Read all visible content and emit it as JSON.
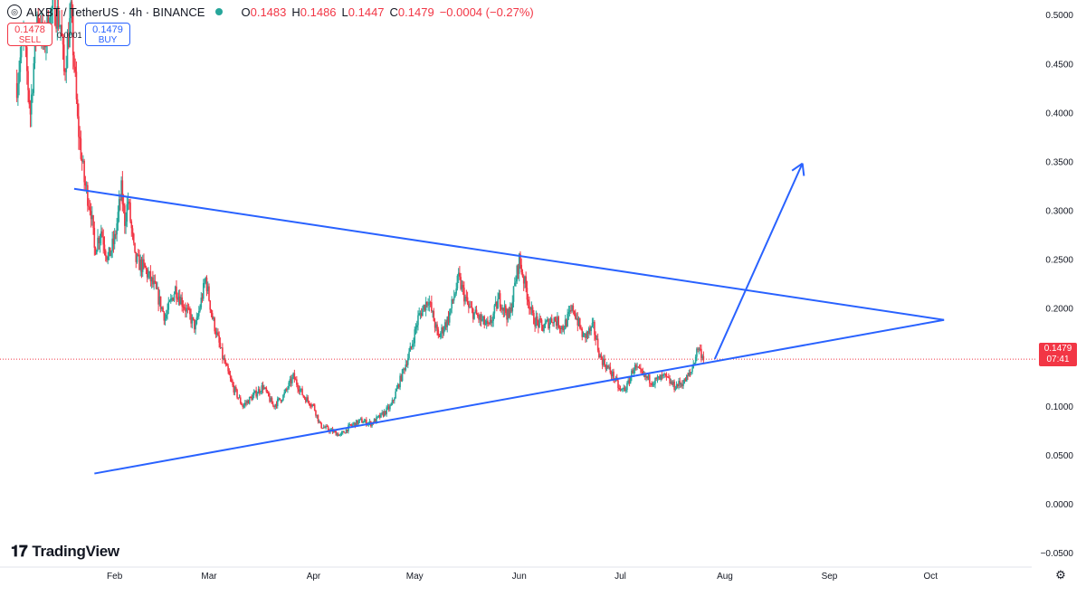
{
  "header": {
    "symbol": "AIXBT / TetherUS · 4h · BINANCE",
    "open_label": "O",
    "open": "0.1483",
    "high_label": "H",
    "high": "0.1486",
    "low_label": "L",
    "low": "0.1447",
    "close_label": "C",
    "close": "0.1479",
    "change": "−0.0004 (−0.27%)"
  },
  "trade": {
    "sell_price": "0.1478",
    "sell_label": "SELL",
    "spread": "0.0001",
    "buy_price": "0.1479",
    "buy_label": "BUY"
  },
  "price_tag": {
    "price": "0.1479",
    "countdown": "07:41"
  },
  "brand": {
    "name": "TradingView"
  },
  "icons": {
    "symbol_logo": "aixbt-logo-icon",
    "status": "market-status-dot-icon",
    "settings": "gear-icon"
  },
  "colors": {
    "up": "#26a69a",
    "down": "#f23645",
    "drawing": "#2962ff",
    "last_price_line": "#f23645"
  },
  "chart_data": {
    "type": "candlestick",
    "timeframe": "4h",
    "y_ticks": [
      "0.5000",
      "0.4500",
      "0.4000",
      "0.3500",
      "0.3000",
      "0.2500",
      "0.2000",
      "0.1000",
      "0.0500",
      "0.0000",
      "−0.0500"
    ],
    "y_tick_values": [
      0.5,
      0.45,
      0.4,
      0.35,
      0.3,
      0.25,
      0.2,
      0.1,
      0.05,
      0.0,
      -0.05
    ],
    "ylim": [
      -0.06,
      0.515
    ],
    "x_ticks": [
      "Feb",
      "Mar",
      "Apr",
      "May",
      "Jun",
      "Jul",
      "Aug",
      "Sep",
      "Oct"
    ],
    "x_tick_days": [
      31,
      59,
      90,
      120,
      151,
      181,
      212,
      243,
      273
    ],
    "xlim_days": [
      -3,
      303
    ],
    "last_price": 0.1479,
    "price_path": [
      {
        "day": 2,
        "price": 0.43
      },
      {
        "day": 4,
        "price": 0.48
      },
      {
        "day": 6,
        "price": 0.4
      },
      {
        "day": 8,
        "price": 0.5
      },
      {
        "day": 10,
        "price": 0.47
      },
      {
        "day": 12,
        "price": 0.5
      },
      {
        "day": 13,
        "price": 0.51
      },
      {
        "day": 15,
        "price": 0.49
      },
      {
        "day": 16,
        "price": 0.44
      },
      {
        "day": 18,
        "price": 0.5
      },
      {
        "day": 19,
        "price": 0.45
      },
      {
        "day": 20,
        "price": 0.39
      },
      {
        "day": 22,
        "price": 0.33
      },
      {
        "day": 24,
        "price": 0.3
      },
      {
        "day": 25,
        "price": 0.26
      },
      {
        "day": 27,
        "price": 0.28
      },
      {
        "day": 29,
        "price": 0.25
      },
      {
        "day": 31,
        "price": 0.27
      },
      {
        "day": 33,
        "price": 0.32
      },
      {
        "day": 34,
        "price": 0.29
      },
      {
        "day": 35,
        "price": 0.31
      },
      {
        "day": 37,
        "price": 0.25
      },
      {
        "day": 40,
        "price": 0.24
      },
      {
        "day": 43,
        "price": 0.22
      },
      {
        "day": 46,
        "price": 0.19
      },
      {
        "day": 49,
        "price": 0.22
      },
      {
        "day": 52,
        "price": 0.2
      },
      {
        "day": 55,
        "price": 0.18
      },
      {
        "day": 58,
        "price": 0.23
      },
      {
        "day": 60,
        "price": 0.19
      },
      {
        "day": 63,
        "price": 0.15
      },
      {
        "day": 66,
        "price": 0.12
      },
      {
        "day": 69,
        "price": 0.1
      },
      {
        "day": 72,
        "price": 0.11
      },
      {
        "day": 75,
        "price": 0.12
      },
      {
        "day": 78,
        "price": 0.1
      },
      {
        "day": 81,
        "price": 0.11
      },
      {
        "day": 84,
        "price": 0.13
      },
      {
        "day": 87,
        "price": 0.11
      },
      {
        "day": 90,
        "price": 0.1
      },
      {
        "day": 92,
        "price": 0.08
      },
      {
        "day": 95,
        "price": 0.075
      },
      {
        "day": 98,
        "price": 0.07
      },
      {
        "day": 101,
        "price": 0.08
      },
      {
        "day": 104,
        "price": 0.085
      },
      {
        "day": 107,
        "price": 0.082
      },
      {
        "day": 110,
        "price": 0.09
      },
      {
        "day": 113,
        "price": 0.1
      },
      {
        "day": 116,
        "price": 0.13
      },
      {
        "day": 119,
        "price": 0.16
      },
      {
        "day": 121,
        "price": 0.19
      },
      {
        "day": 124,
        "price": 0.21
      },
      {
        "day": 127,
        "price": 0.17
      },
      {
        "day": 130,
        "price": 0.19
      },
      {
        "day": 133,
        "price": 0.23
      },
      {
        "day": 136,
        "price": 0.2
      },
      {
        "day": 139,
        "price": 0.19
      },
      {
        "day": 142,
        "price": 0.18
      },
      {
        "day": 145,
        "price": 0.21
      },
      {
        "day": 148,
        "price": 0.19
      },
      {
        "day": 150,
        "price": 0.23
      },
      {
        "day": 151,
        "price": 0.25
      },
      {
        "day": 153,
        "price": 0.22
      },
      {
        "day": 155,
        "price": 0.19
      },
      {
        "day": 158,
        "price": 0.18
      },
      {
        "day": 161,
        "price": 0.19
      },
      {
        "day": 164,
        "price": 0.18
      },
      {
        "day": 167,
        "price": 0.2
      },
      {
        "day": 170,
        "price": 0.17
      },
      {
        "day": 173,
        "price": 0.18
      },
      {
        "day": 175,
        "price": 0.15
      },
      {
        "day": 177,
        "price": 0.14
      },
      {
        "day": 179,
        "price": 0.13
      },
      {
        "day": 181,
        "price": 0.115
      },
      {
        "day": 183,
        "price": 0.12
      },
      {
        "day": 185,
        "price": 0.14
      },
      {
        "day": 188,
        "price": 0.13
      },
      {
        "day": 191,
        "price": 0.125
      },
      {
        "day": 194,
        "price": 0.13
      },
      {
        "day": 197,
        "price": 0.12
      },
      {
        "day": 200,
        "price": 0.125
      },
      {
        "day": 202,
        "price": 0.135
      },
      {
        "day": 204,
        "price": 0.16
      },
      {
        "day": 206,
        "price": 0.148
      }
    ],
    "drawings": [
      {
        "kind": "trendline",
        "name": "upper-trendline",
        "from": {
          "day": 19,
          "price": 0.322
        },
        "to": {
          "day": 277,
          "price": 0.188
        }
      },
      {
        "kind": "trendline",
        "name": "lower-trendline",
        "from": {
          "day": 25,
          "price": 0.031
        },
        "to": {
          "day": 277,
          "price": 0.188
        }
      },
      {
        "kind": "arrow",
        "name": "breakout-arrow",
        "from": {
          "day": 209,
          "price": 0.148
        },
        "to": {
          "day": 235,
          "price": 0.348
        }
      }
    ]
  }
}
